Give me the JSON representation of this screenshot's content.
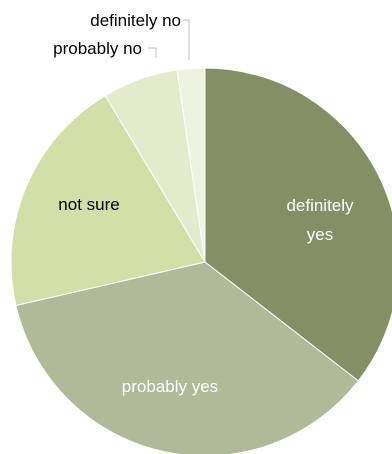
{
  "chart_data": {
    "type": "pie",
    "title": "",
    "start_angle_deg": 0,
    "direction": "clockwise",
    "legend": "none",
    "slices": [
      {
        "label": "definitely yes",
        "value": 35.5,
        "color": "#848f66",
        "label_color": "#ffffff"
      },
      {
        "label": "probably yes",
        "value": 35.9,
        "color": "#b0b998",
        "label_color": "#ffffff"
      },
      {
        "label": "not sure",
        "value": 20.0,
        "color": "#d2dfa7",
        "label_color": "#000000"
      },
      {
        "label": "probably no",
        "value": 6.3,
        "color": "#e3ebcc",
        "label_color": "#000000"
      },
      {
        "label": "definitely no",
        "value": 2.3,
        "color": "#eef3df",
        "label_color": "#000000"
      }
    ]
  }
}
